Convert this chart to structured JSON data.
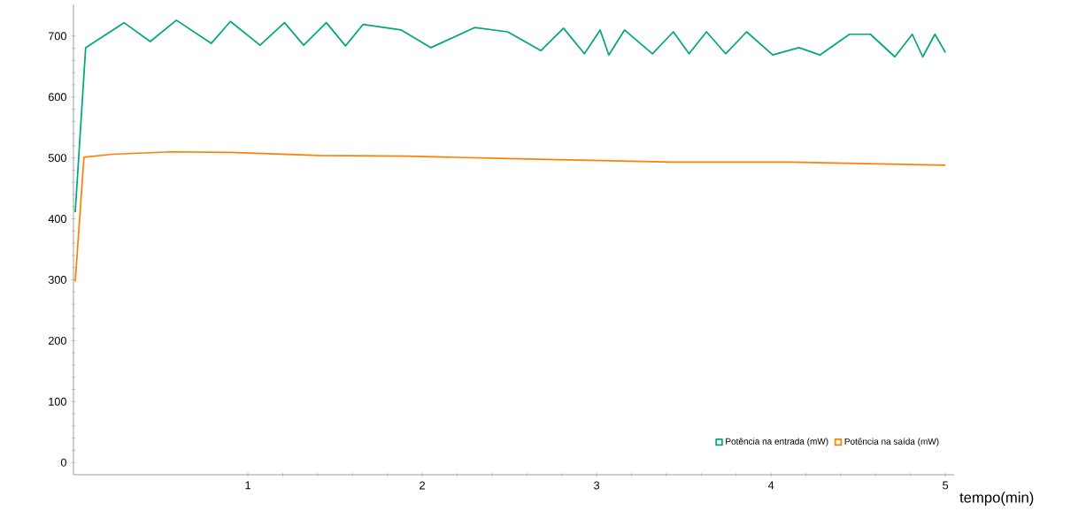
{
  "chart_data": {
    "type": "line",
    "xlabel": "tempo(min)",
    "xlim": [
      0,
      5.05
    ],
    "ylim": [
      -20,
      752
    ],
    "xticks": [
      1,
      2,
      3,
      4,
      5
    ],
    "yticks": [
      0,
      100,
      200,
      300,
      400,
      500,
      600,
      700
    ],
    "grid": false,
    "legend": "bottom right",
    "marker": "none",
    "line_style": "solid",
    "series": [
      {
        "name": "Potência na entrada (mW)",
        "color": "#00a878",
        "x": [
          0.01,
          0.07,
          0.29,
          0.44,
          0.59,
          0.79,
          0.9,
          1.07,
          1.21,
          1.32,
          1.45,
          1.56,
          1.66,
          1.88,
          2.05,
          2.3,
          2.49,
          2.68,
          2.81,
          2.93,
          3.02,
          3.07,
          3.16,
          3.32,
          3.44,
          3.53,
          3.63,
          3.74,
          3.86,
          4.01,
          4.16,
          4.28,
          4.45,
          4.57,
          4.71,
          4.81,
          4.87,
          4.94,
          5.0
        ],
        "values": [
          411,
          681,
          722,
          691,
          726,
          688,
          724,
          685,
          722,
          685,
          722,
          684,
          719,
          710,
          681,
          714,
          707,
          676,
          713,
          671,
          710,
          669,
          710,
          671,
          707,
          671,
          707,
          671,
          707,
          669,
          681,
          669,
          703,
          703,
          666,
          703,
          666,
          703,
          673
        ]
      },
      {
        "name": "Potência na saída (mW)",
        "color": "#ff8000",
        "x": [
          0.01,
          0.06,
          0.22,
          0.56,
          0.9,
          1.41,
          1.91,
          2.49,
          3.44,
          4.11,
          5.0
        ],
        "values": [
          297,
          501,
          506,
          510,
          509,
          504,
          503,
          499,
          493,
          493,
          488
        ]
      }
    ]
  }
}
